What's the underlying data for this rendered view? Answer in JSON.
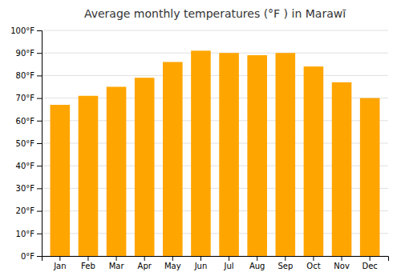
{
  "chart_data": {
    "type": "bar",
    "title": "Average monthly temperatures (°F ) in Marawī",
    "categories": [
      "Jan",
      "Feb",
      "Mar",
      "Apr",
      "May",
      "Jun",
      "Jul",
      "Aug",
      "Sep",
      "Oct",
      "Nov",
      "Dec"
    ],
    "values": [
      67,
      71,
      75,
      79,
      86,
      91,
      90,
      89,
      90,
      84,
      77,
      70
    ],
    "color": "#FFA500",
    "ylim": [
      0,
      100
    ],
    "yticks": [
      {
        "value": 0,
        "label": "0°F"
      },
      {
        "value": 10,
        "label": "10°F"
      },
      {
        "value": 20,
        "label": "20°F"
      },
      {
        "value": 30,
        "label": "30°F"
      },
      {
        "value": 40,
        "label": "40°F"
      },
      {
        "value": 50,
        "label": "50°F"
      },
      {
        "value": 60,
        "label": "60°F"
      },
      {
        "value": 70,
        "label": "70°F"
      },
      {
        "value": 80,
        "label": "80°F"
      },
      {
        "value": 90,
        "label": "90°F"
      },
      {
        "value": 100,
        "label": "100°F"
      }
    ],
    "grid": true
  }
}
